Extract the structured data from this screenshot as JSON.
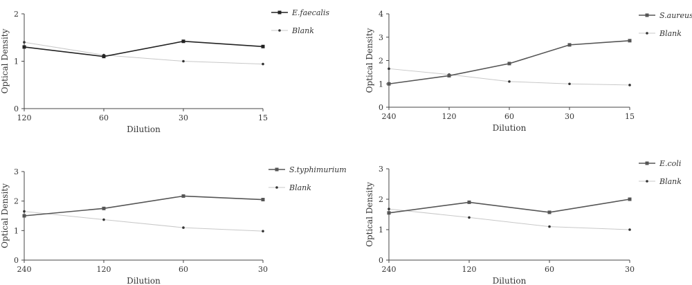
{
  "chart_data": [
    {
      "type": "line",
      "categories": [
        "120",
        "60",
        "30",
        "15"
      ],
      "series": [
        {
          "name": "E.faecalis",
          "values": [
            1.3,
            1.1,
            1.42,
            1.31
          ],
          "color": "#222222",
          "marker": "square"
        },
        {
          "name": "Blank",
          "values": [
            1.4,
            1.13,
            1.0,
            0.94
          ],
          "color": "#c8c8c8",
          "marker": "dot"
        }
      ],
      "xlabel": "Dilution",
      "ylabel": "Optical Density",
      "ylim": [
        0,
        2
      ],
      "yticks": [
        "0",
        "1",
        "2"
      ],
      "legend": "top-right"
    },
    {
      "type": "line",
      "categories": [
        "240",
        "120",
        "60",
        "30",
        "15"
      ],
      "series": [
        {
          "name": "S.aureus",
          "values": [
            1.0,
            1.35,
            1.87,
            2.67,
            2.85
          ],
          "color": "#555555",
          "marker": "square"
        },
        {
          "name": "Blank",
          "values": [
            1.65,
            1.4,
            1.1,
            1.0,
            0.95
          ],
          "color": "#c8c8c8",
          "marker": "dot"
        }
      ],
      "xlabel": "Dilution",
      "ylabel": "Optical Density",
      "ylim": [
        0,
        4
      ],
      "yticks": [
        "0",
        "1",
        "2",
        "3",
        "4"
      ],
      "legend": "top-right"
    },
    {
      "type": "line",
      "categories": [
        "240",
        "120",
        "60",
        "30"
      ],
      "series": [
        {
          "name": "S.typhimurium",
          "values": [
            1.5,
            1.75,
            2.17,
            2.05
          ],
          "color": "#555555",
          "marker": "square"
        },
        {
          "name": "Blank",
          "values": [
            1.65,
            1.37,
            1.1,
            0.98
          ],
          "color": "#c8c8c8",
          "marker": "dot"
        }
      ],
      "xlabel": "Dilution",
      "ylabel": "Optical Density",
      "ylim": [
        0,
        3
      ],
      "yticks": [
        "0",
        "1",
        "2",
        "3"
      ],
      "legend": "top-right"
    },
    {
      "type": "line",
      "categories": [
        "240",
        "120",
        "60",
        "30"
      ],
      "series": [
        {
          "name": "E.coli",
          "values": [
            1.55,
            1.9,
            1.57,
            2.0
          ],
          "color": "#555555",
          "marker": "square"
        },
        {
          "name": "Blank",
          "values": [
            1.68,
            1.4,
            1.1,
            1.0
          ],
          "color": "#c8c8c8",
          "marker": "dot"
        }
      ],
      "xlabel": "Dilution",
      "ylabel": "Optical Density",
      "ylim": [
        0,
        3
      ],
      "yticks": [
        "0",
        "1",
        "2",
        "3"
      ],
      "legend": "top-right"
    }
  ]
}
